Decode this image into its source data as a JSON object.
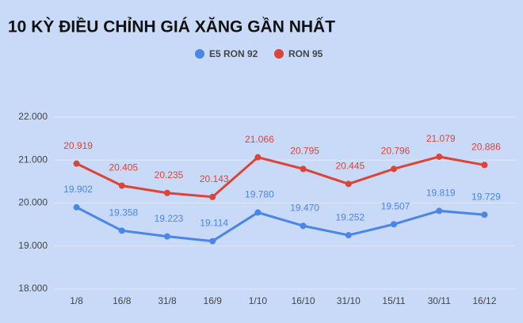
{
  "chart_data": {
    "type": "line",
    "title": "10 KỲ ĐIỀU CHỈNH GIÁ XĂNG GẦN NHẤT",
    "categories": [
      "1/8",
      "16/8",
      "31/8",
      "16/9",
      "1/10",
      "16/10",
      "31/10",
      "15/11",
      "30/11",
      "16/12"
    ],
    "series": [
      {
        "name": "E5 RON 92",
        "color": "#4a86e8",
        "values": [
          19902,
          19358,
          19223,
          19114,
          19780,
          19470,
          19252,
          19507,
          19819,
          19729
        ],
        "value_labels": [
          "19.902",
          "19.358",
          "19.223",
          "19.114",
          "19.780",
          "19.470",
          "19.252",
          "19.507",
          "19.819",
          "19.729"
        ]
      },
      {
        "name": "RON 95",
        "color": "#db4437",
        "values": [
          20919,
          20405,
          20235,
          20143,
          21066,
          20795,
          20445,
          20796,
          21079,
          20886
        ],
        "value_labels": [
          "20.919",
          "20.405",
          "20.235",
          "20.143",
          "21.066",
          "20.795",
          "20.445",
          "20.796",
          "21.079",
          "20.886"
        ]
      }
    ],
    "ylim": [
      18000,
      22000
    ],
    "yticks": [
      {
        "value": 18000,
        "label": "18.000"
      },
      {
        "value": 19000,
        "label": "19.000"
      },
      {
        "value": 20000,
        "label": "20.000"
      },
      {
        "value": 21000,
        "label": "21.000"
      },
      {
        "value": 22000,
        "label": "22.000"
      }
    ],
    "grid": true,
    "legend": "top"
  }
}
